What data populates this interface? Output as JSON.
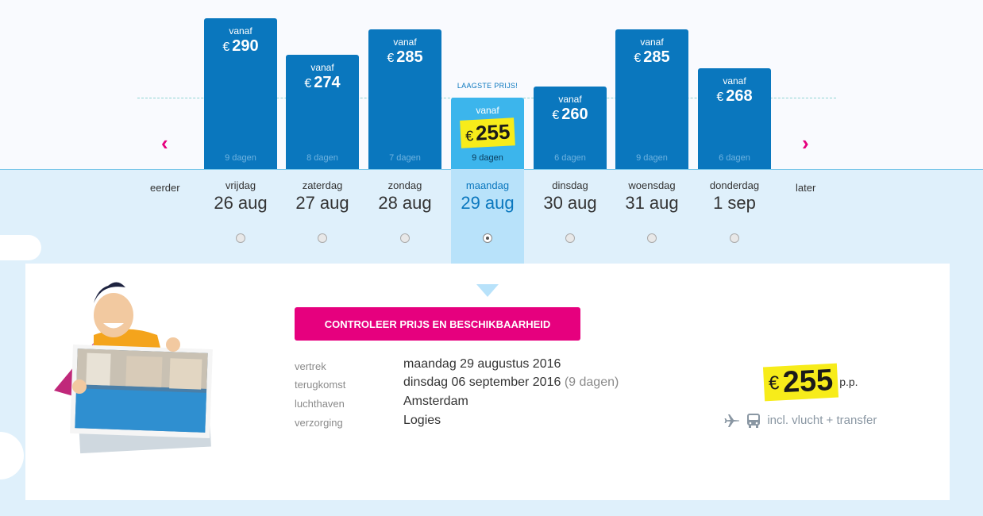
{
  "chart": {
    "lowest_label": "LAAGSTE PRIJS!",
    "vanaf_label": "vanaf",
    "currency": "€",
    "selected_index": 3,
    "bars": [
      {
        "price": "290",
        "value": 290,
        "days": "9 dagen"
      },
      {
        "price": "274",
        "value": 274,
        "days": "8 dagen"
      },
      {
        "price": "285",
        "value": 285,
        "days": "7 dagen"
      },
      {
        "price": "255",
        "value": 255,
        "days": "9 dagen"
      },
      {
        "price": "260",
        "value": 260,
        "days": "6 dagen"
      },
      {
        "price": "285",
        "value": 285,
        "days": "9 dagen"
      },
      {
        "price": "268",
        "value": 268,
        "days": "6 dagen"
      }
    ]
  },
  "nav": {
    "earlier": "eerder",
    "later": "later",
    "prev_icon": "chevron-left-icon",
    "next_icon": "chevron-right-icon"
  },
  "days": [
    {
      "weekday": "vrijdag",
      "date": "26 aug"
    },
    {
      "weekday": "zaterdag",
      "date": "27 aug"
    },
    {
      "weekday": "zondag",
      "date": "28 aug"
    },
    {
      "weekday": "maandag",
      "date": "29 aug"
    },
    {
      "weekday": "dinsdag",
      "date": "30 aug"
    },
    {
      "weekday": "woensdag",
      "date": "31 aug"
    },
    {
      "weekday": "donderdag",
      "date": "1 sep"
    }
  ],
  "detail": {
    "cta_label": "CONTROLEER PRIJS EN BESCHIKBAARHEID",
    "rows": [
      {
        "label": "vertrek",
        "value": "maandag 29 augustus 2016",
        "extra": ""
      },
      {
        "label": "terugkomst",
        "value": "dinsdag 06 september 2016",
        "extra": "(9 dagen)"
      },
      {
        "label": "luchthaven",
        "value": "Amsterdam",
        "extra": ""
      },
      {
        "label": "verzorging",
        "value": "Logies",
        "extra": ""
      }
    ],
    "price_currency": "€",
    "price_amount": "255",
    "price_suffix": "p.p.",
    "includes_text": "incl. vlucht + transfer",
    "includes_icons": [
      "plane-icon",
      "bus-icon"
    ]
  },
  "colors": {
    "bar": "#0a77be",
    "bar_selected": "#3cb5ec",
    "accent": "#e6007e",
    "highlight": "#f7ec1a"
  }
}
